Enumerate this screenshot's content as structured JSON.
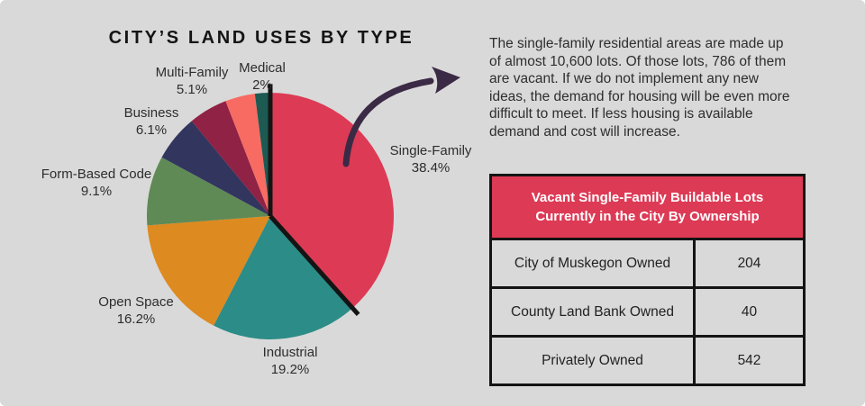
{
  "title": "CITY’S LAND USES BY TYPE",
  "chart_data": {
    "type": "pie",
    "title": "CITY’S LAND USES BY TYPE",
    "direction": "clockwise",
    "start_angle_deg": 0,
    "legend_position": "none",
    "labels_inline": true,
    "slices": [
      {
        "label": "Single-Family",
        "value": 38.4,
        "pct_label": "38.4%",
        "color": "#dd3a55",
        "emphasized_outline": true
      },
      {
        "label": "Industrial",
        "value": 19.2,
        "pct_label": "19.2%",
        "color": "#2c8c87"
      },
      {
        "label": "Open Space",
        "value": 16.2,
        "pct_label": "16.2%",
        "color": "#dd8a20"
      },
      {
        "label": "Form-Based Code",
        "value": 9.1,
        "pct_label": "9.1%",
        "color": "#5f8a55"
      },
      {
        "label": "Business",
        "value": 6.1,
        "pct_label": "6.1%",
        "color": "#32355e"
      },
      {
        "label": "Multi-Family",
        "value": 5.1,
        "pct_label": "5.1%",
        "color": "#8f2245"
      },
      {
        "label": "",
        "value": 3.9,
        "pct_label": "",
        "color": "#f86b62"
      },
      {
        "label": "Medical",
        "value": 2.0,
        "pct_label": "2%",
        "color": "#1c5a52"
      }
    ]
  },
  "annotation": {
    "lines": [
      "The single-family residential areas are made up",
      "of almost 10,600 lots. Of those lots, 786 of them",
      "are vacant. If we do not implement any new",
      "ideas, the demand for housing will be even more",
      "difficult to meet. If less housing is available",
      "demand and cost will increase."
    ]
  },
  "table": {
    "header": "Vacant Single-Family Buildable Lots Currently in the City By Ownership",
    "rows": [
      {
        "owner": "City of Muskegon Owned",
        "count": "204"
      },
      {
        "owner": "County Land Bank Owned",
        "count": "40"
      },
      {
        "owner": "Privately Owned",
        "count": "542"
      }
    ]
  },
  "colors": {
    "background": "#d9d9d9",
    "accent_red": "#dd3a55",
    "arrow": "#3b2a45",
    "line": "#141414",
    "text": "#2e2e2e",
    "table_header_text": "#ffffff"
  }
}
